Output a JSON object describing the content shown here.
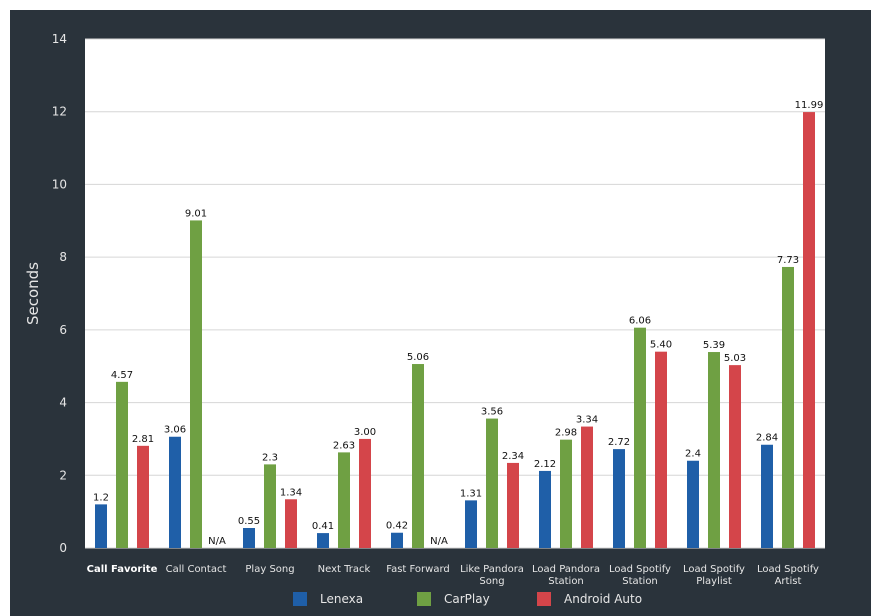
{
  "chart_data": {
    "type": "bar",
    "title": "",
    "xlabel": "",
    "ylabel": "Seconds",
    "ylim": [
      0,
      14
    ],
    "yticks": [
      0,
      2,
      4,
      6,
      8,
      10,
      12,
      14
    ],
    "grid": true,
    "legend_position": "bottom",
    "categories": [
      [
        "Call Favorite"
      ],
      [
        "Call Contact"
      ],
      [
        "Play Song"
      ],
      [
        "Next Track"
      ],
      [
        "Fast Forward"
      ],
      [
        "Like Pandora",
        "Song"
      ],
      [
        "Load Pandora",
        "Station"
      ],
      [
        "Load Spotify",
        "Station"
      ],
      [
        "Load Spotify",
        "Playlist"
      ],
      [
        "Load Spotify",
        "Artist"
      ]
    ],
    "emphasized_category": 0,
    "series": [
      {
        "name": "Lenexa",
        "color": "#1f5fa8",
        "values": [
          1.2,
          3.06,
          0.55,
          0.41,
          0.42,
          1.31,
          2.12,
          2.72,
          2.4,
          2.84
        ],
        "labels": [
          "1.2",
          "3.06",
          "0.55",
          "0.41",
          "0.42",
          "1.31",
          "2.12",
          "2.72",
          "2.4",
          "2.84"
        ]
      },
      {
        "name": "CarPlay",
        "color": "#6fa043",
        "values": [
          4.57,
          9.01,
          2.3,
          2.63,
          5.06,
          3.56,
          2.98,
          6.06,
          5.39,
          7.73
        ],
        "labels": [
          "4.57",
          "9.01",
          "2.3",
          "2.63",
          "5.06",
          "3.56",
          "2.98",
          "6.06",
          "5.39",
          "7.73"
        ]
      },
      {
        "name": "Android Auto",
        "color": "#d4454a",
        "values": [
          2.81,
          null,
          1.34,
          3.0,
          null,
          2.34,
          3.34,
          5.4,
          5.03,
          11.99
        ],
        "labels": [
          "2.81",
          "N/A",
          "1.34",
          "3.00",
          "N/A",
          "2.34",
          "3.34",
          "5.40",
          "5.03",
          "11.99"
        ]
      }
    ]
  }
}
